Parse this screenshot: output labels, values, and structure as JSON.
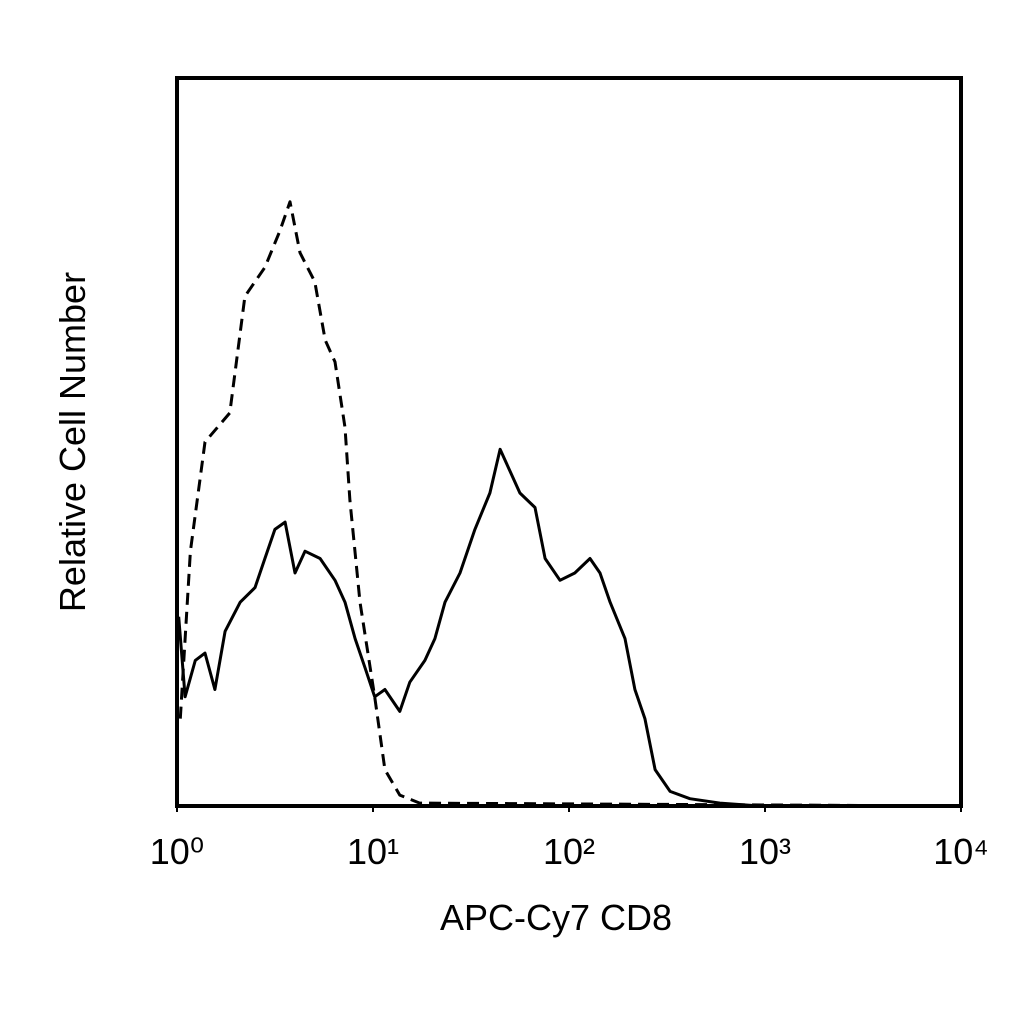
{
  "chart_data": {
    "type": "line",
    "xscale": "log",
    "x_label": "APC-Cy7 CD8",
    "y_label": "Relative Cell Number",
    "xlim": [
      1,
      10000
    ],
    "ylim": [
      0,
      100
    ],
    "xticks": [
      {
        "value": 1,
        "label": "10⁰"
      },
      {
        "value": 10,
        "label": "10¹"
      },
      {
        "value": 100,
        "label": "10²"
      },
      {
        "value": 1000,
        "label": "10³"
      },
      {
        "value": 10000,
        "label": "10⁴"
      }
    ],
    "series": [
      {
        "color": "#000000",
        "dash": true,
        "x": [
          1.04,
          1.17,
          1.39,
          1.86,
          2.22,
          2.81,
          3.35,
          3.77,
          4.24,
          5.05,
          5.7,
          6.4,
          7.2,
          7.62,
          8.58,
          10.2,
          11.5,
          13.7,
          17.3,
          10000
        ],
        "values": [
          12,
          35,
          50,
          54,
          70,
          74,
          79,
          83,
          76,
          72,
          64,
          61,
          52,
          42,
          28,
          15,
          5,
          1.5,
          0.4,
          0
        ]
      },
      {
        "color": "#000000",
        "dash": false,
        "x": [
          1.02,
          1.1,
          1.24,
          1.39,
          1.56,
          1.76,
          2.1,
          2.5,
          2.81,
          3.16,
          3.56,
          4.0,
          4.5,
          5.37,
          6.4,
          7.2,
          8.1,
          9.1,
          10.2,
          11.5,
          13.7,
          15.4,
          18.4,
          20.7,
          23.3,
          27.8,
          33.1,
          39.5,
          44.5,
          50.0,
          56.2,
          67.1,
          75.5,
          90.0,
          107,
          128,
          144,
          162,
          193,
          217,
          244,
          275,
          328,
          414,
          589,
          942,
          10000
        ],
        "values": [
          26,
          15,
          20,
          21,
          16,
          24,
          28,
          30,
          34,
          38,
          39,
          32,
          35,
          34,
          31,
          28,
          23,
          19,
          15,
          16,
          13,
          17,
          20,
          23,
          28,
          32,
          38,
          43,
          49,
          46,
          43,
          41,
          34,
          31,
          32,
          34,
          32,
          28,
          23,
          16,
          12,
          5,
          2,
          1,
          0.4,
          0,
          0
        ]
      }
    ]
  }
}
